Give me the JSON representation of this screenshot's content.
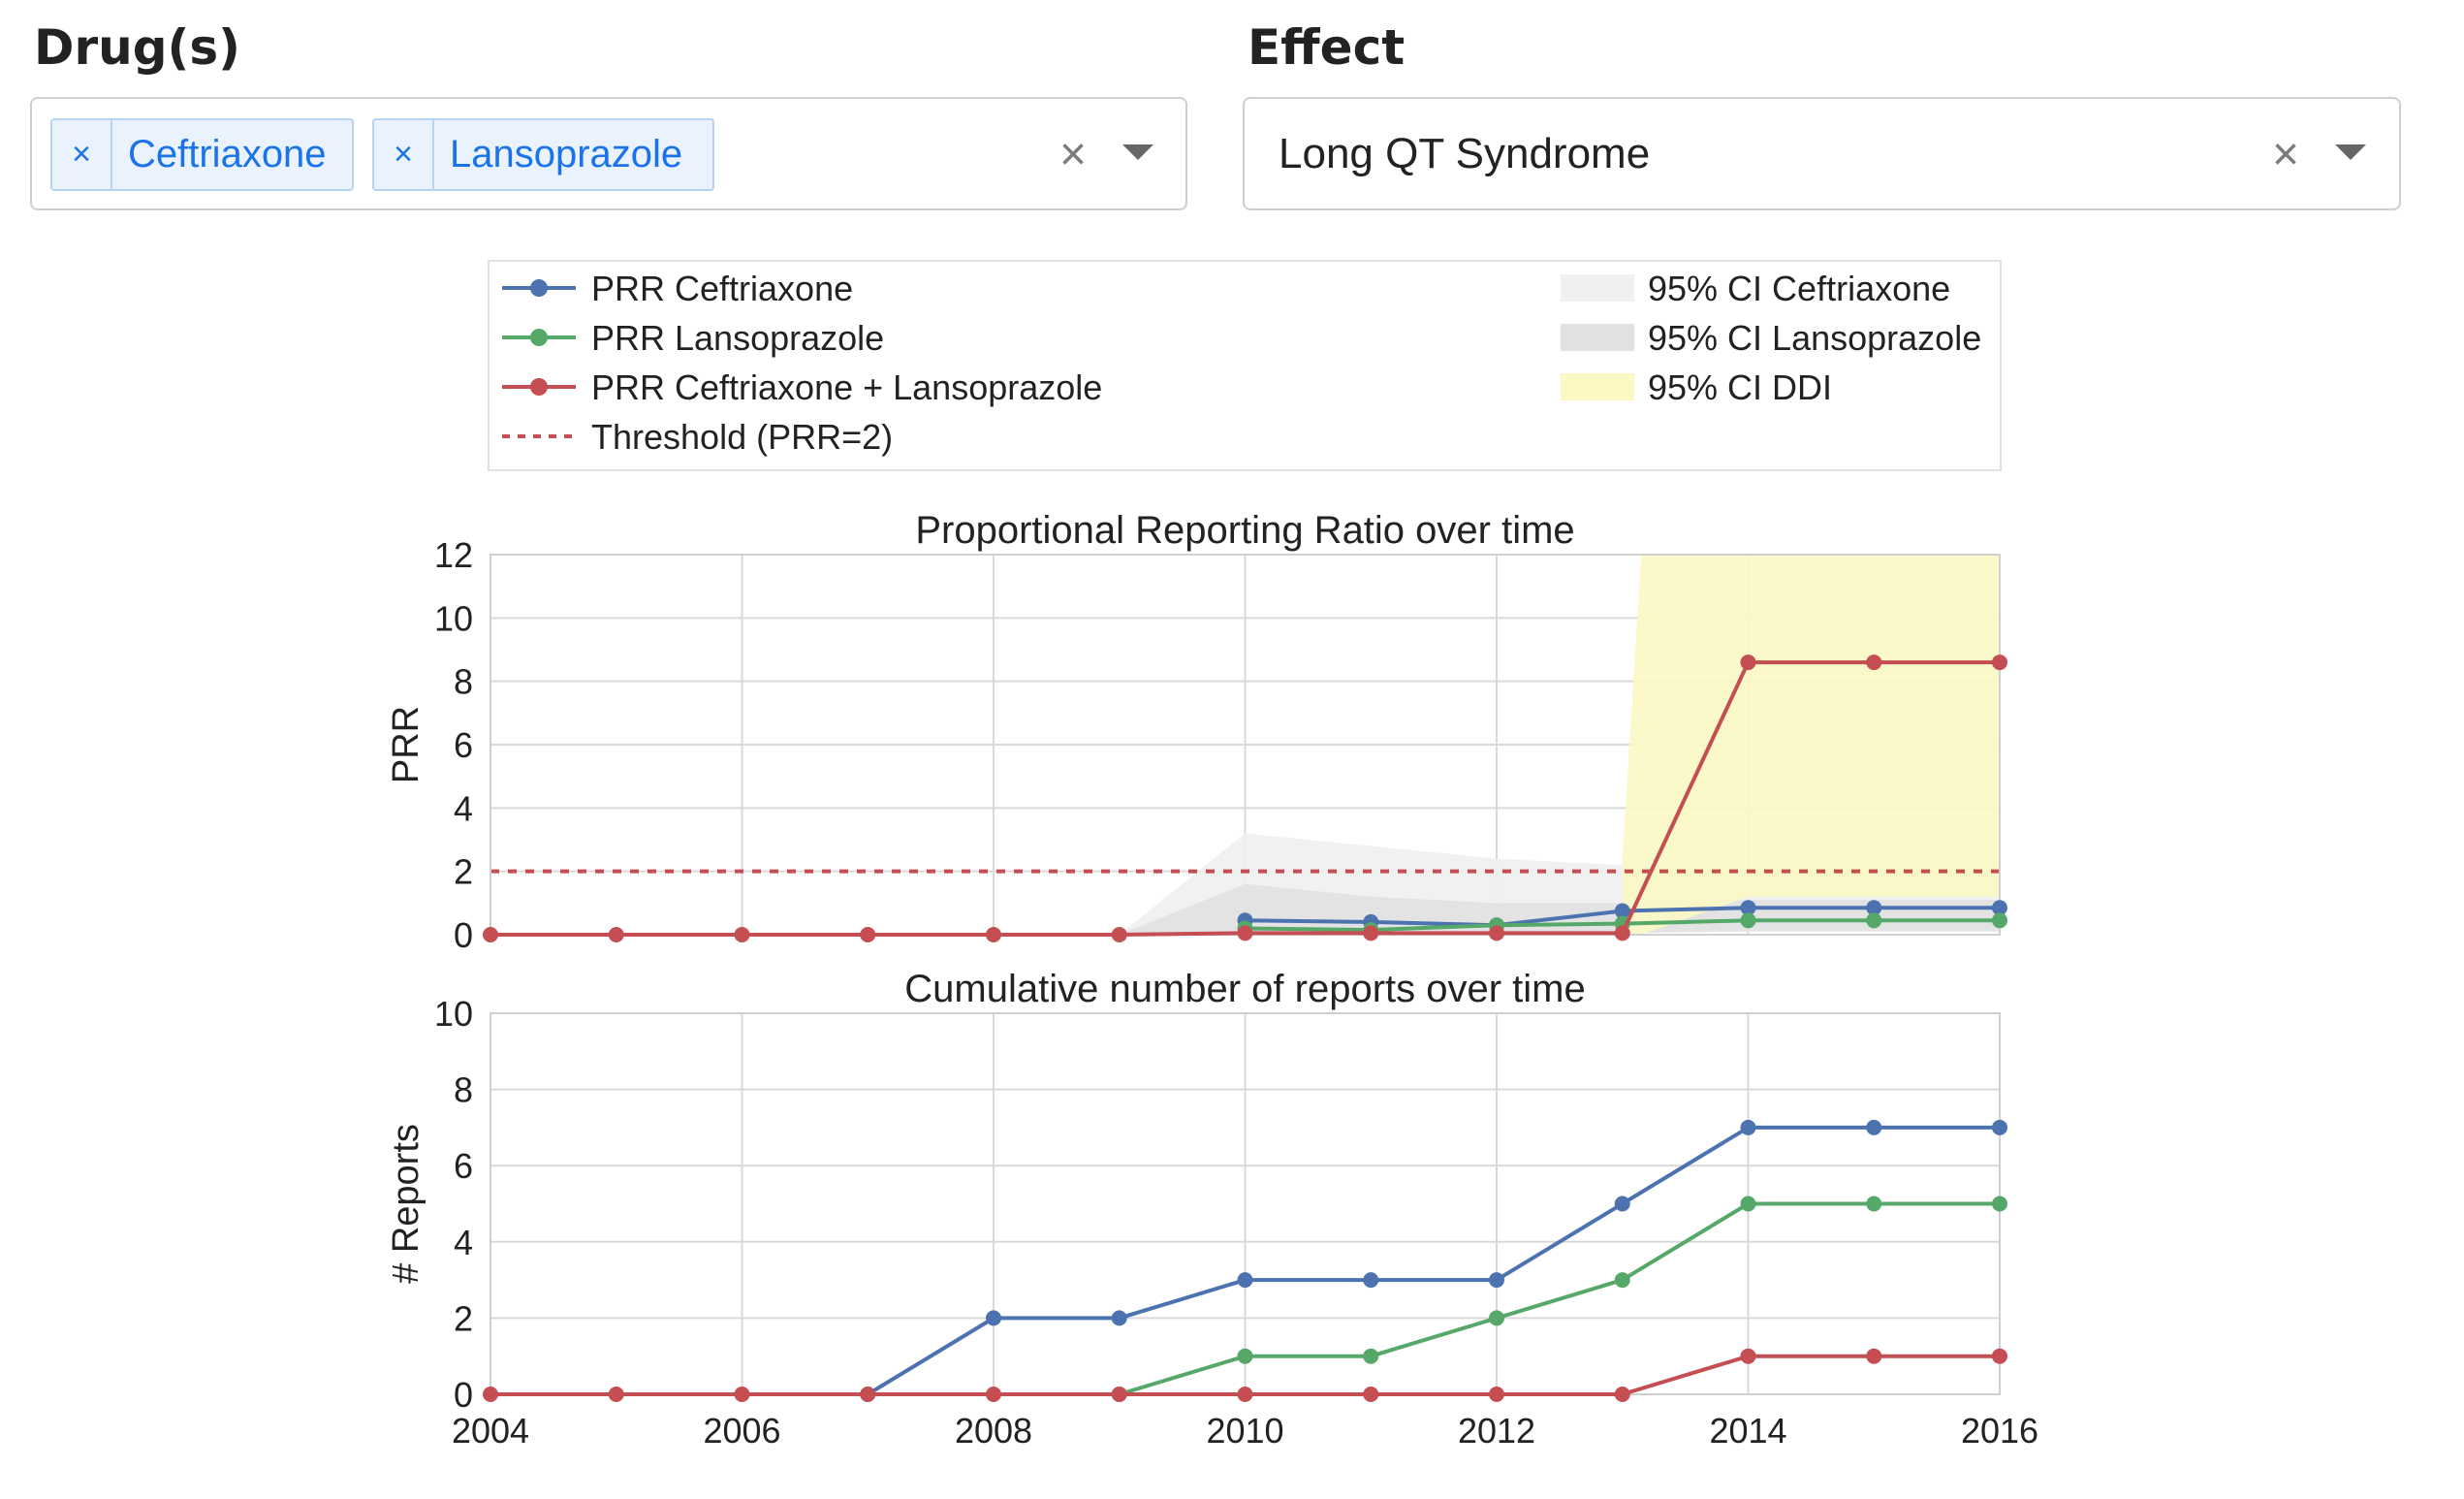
{
  "controls": {
    "drugs": {
      "label": "Drug(s)",
      "selected": [
        "Ceftriaxone",
        "Lansoprazole"
      ],
      "remove_glyph": "×",
      "clear_glyph": "×",
      "dropdown_icon": "caret-down-icon"
    },
    "effect": {
      "label": "Effect",
      "value": "Long QT Syndrome",
      "clear_glyph": "×",
      "dropdown_icon": "caret-down-icon"
    }
  },
  "colors": {
    "ceftriaxone": "#4c72b0",
    "lansoprazole": "#55a868",
    "combined": "#c44e52",
    "threshold": "#c44e52",
    "ci_ceftriaxone": "#f0f0f0",
    "ci_lansoprazole": "#e1e1e1",
    "ci_ddi": "#fbf8c4",
    "grid": "#d9d9d9"
  },
  "legend": {
    "lines": [
      {
        "label": "PRR Ceftriaxone",
        "color_key": "ceftriaxone",
        "style": "solid-marker"
      },
      {
        "label": "PRR Lansoprazole",
        "color_key": "lansoprazole",
        "style": "solid-marker"
      },
      {
        "label": "PRR Ceftriaxone + Lansoprazole",
        "color_key": "combined",
        "style": "solid-marker"
      },
      {
        "label": "Threshold (PRR=2)",
        "color_key": "threshold",
        "style": "dashed"
      }
    ],
    "patches": [
      {
        "label": "95% CI Ceftriaxone",
        "color_key": "ci_ceftriaxone"
      },
      {
        "label": "95% CI Lansoprazole",
        "color_key": "ci_lansoprazole"
      },
      {
        "label": "95% CI DDI",
        "color_key": "ci_ddi"
      }
    ]
  },
  "chart_data": [
    {
      "type": "line",
      "title": "Proportional Reporting Ratio over time",
      "xlabel": "",
      "ylabel": "PRR",
      "xlim": [
        2004,
        2016
      ],
      "ylim": [
        0,
        12
      ],
      "yticks": [
        0,
        2,
        4,
        6,
        8,
        10,
        12
      ],
      "grid": true,
      "x": [
        2004,
        2005,
        2006,
        2007,
        2008,
        2009,
        2010,
        2011,
        2012,
        2013,
        2014,
        2015,
        2016
      ],
      "threshold": 2,
      "series": [
        {
          "name": "PRR Ceftriaxone",
          "color_key": "ceftriaxone",
          "x": [
            2010,
            2011,
            2012,
            2013,
            2014,
            2015,
            2016
          ],
          "values": [
            0.45,
            0.4,
            0.3,
            0.75,
            0.85,
            0.85,
            0.85
          ]
        },
        {
          "name": "PRR Lansoprazole",
          "color_key": "lansoprazole",
          "x": [
            2010,
            2011,
            2012,
            2013,
            2014,
            2015,
            2016
          ],
          "values": [
            0.2,
            0.15,
            0.3,
            0.35,
            0.45,
            0.45,
            0.45
          ]
        },
        {
          "name": "PRR Ceftriaxone + Lansoprazole",
          "color_key": "combined",
          "x": [
            2004,
            2005,
            2006,
            2007,
            2008,
            2009,
            2010,
            2011,
            2012,
            2013,
            2014,
            2015,
            2016
          ],
          "values": [
            0,
            0,
            0,
            0,
            0,
            0,
            0.05,
            0.05,
            0.05,
            0.05,
            8.6,
            8.6,
            8.6
          ]
        }
      ],
      "bands": [
        {
          "name": "95% CI Ceftriaxone",
          "color_key": "ci_ceftriaxone",
          "x": [
            2009,
            2010,
            2011,
            2012,
            2013,
            2014,
            2015,
            2016
          ],
          "lower": [
            0,
            0.05,
            0.05,
            0.05,
            0.1,
            0.2,
            0.2,
            0.2
          ],
          "upper": [
            0,
            3.2,
            2.8,
            2.4,
            2.2,
            2.1,
            2.1,
            2.1
          ]
        },
        {
          "name": "95% CI Lansoprazole",
          "color_key": "ci_lansoprazole",
          "x": [
            2009,
            2010,
            2011,
            2012,
            2013,
            2014,
            2015,
            2016
          ],
          "lower": [
            0,
            0.02,
            0.02,
            0.05,
            0.05,
            0.1,
            0.1,
            0.1
          ],
          "upper": [
            0,
            1.6,
            1.2,
            1.0,
            1.0,
            1.1,
            1.1,
            1.1
          ]
        },
        {
          "name": "95% CI DDI",
          "color_key": "ci_ddi",
          "x": [
            2013,
            2013.15,
            2014,
            2015,
            2016
          ],
          "lower": [
            0,
            0,
            1.2,
            1.2,
            1.2
          ],
          "upper": [
            2.5,
            12,
            12,
            12,
            12
          ]
        }
      ]
    },
    {
      "type": "line",
      "title": "Cumulative number of reports over time",
      "xlabel": "",
      "ylabel": "# Reports",
      "xlim": [
        2004,
        2016
      ],
      "ylim": [
        0,
        10
      ],
      "yticks": [
        0,
        2,
        4,
        6,
        8,
        10
      ],
      "xticks": [
        2004,
        2006,
        2008,
        2010,
        2012,
        2014,
        2016
      ],
      "grid": true,
      "series": [
        {
          "name": "PRR Ceftriaxone",
          "color_key": "ceftriaxone",
          "x": [
            2007,
            2008,
            2009,
            2010,
            2011,
            2012,
            2013,
            2014,
            2015,
            2016
          ],
          "values": [
            0,
            2,
            2,
            3,
            3,
            3,
            5,
            7,
            7,
            7
          ]
        },
        {
          "name": "PRR Lansoprazole",
          "color_key": "lansoprazole",
          "x": [
            2009,
            2010,
            2011,
            2012,
            2013,
            2014,
            2015,
            2016
          ],
          "values": [
            0,
            1,
            1,
            2,
            3,
            5,
            5,
            5
          ]
        },
        {
          "name": "PRR Ceftriaxone + Lansoprazole",
          "color_key": "combined",
          "x": [
            2004,
            2005,
            2006,
            2007,
            2008,
            2009,
            2010,
            2011,
            2012,
            2013,
            2014,
            2015,
            2016
          ],
          "values": [
            0,
            0,
            0,
            0,
            0,
            0,
            0,
            0,
            0,
            0,
            1,
            1,
            1
          ]
        }
      ]
    }
  ]
}
